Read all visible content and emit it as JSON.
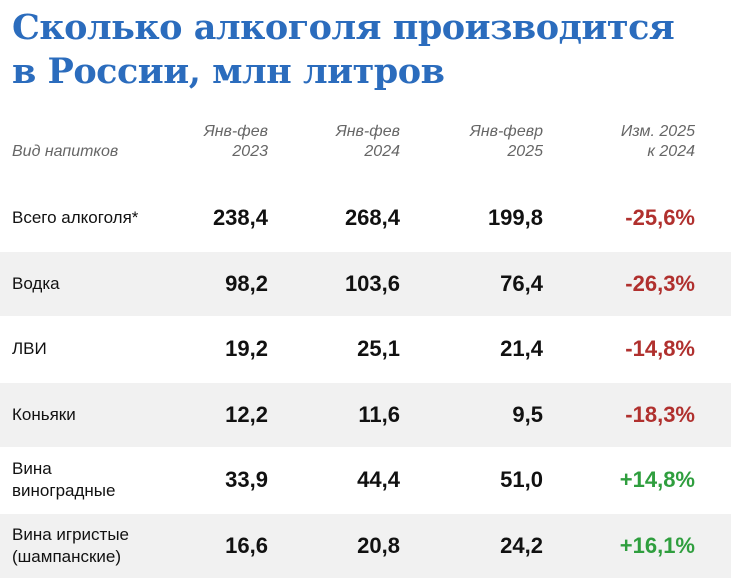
{
  "header": {
    "title": [
      "Сколько алкоголя производится",
      "в России, млн литров"
    ]
  },
  "table": {
    "columns": [
      [
        "Вид напитков"
      ],
      [
        "Янв-фев",
        "2023"
      ],
      [
        "Янв-фев",
        "2024"
      ],
      [
        "Янв-февр",
        "2025"
      ],
      [
        "Изм. 2025",
        "к 2024"
      ]
    ],
    "rows": [
      [
        [
          "Всего алкоголя*"
        ],
        "238,4",
        "268,4",
        "199,8",
        "-25,6%"
      ],
      [
        [
          "Водка"
        ],
        "98,2",
        "103,6",
        "76,4",
        "-26,3%"
      ],
      [
        [
          "ЛВИ"
        ],
        "19,2",
        "25,1",
        "21,4",
        "-14,8%"
      ],
      [
        [
          "Коньяки"
        ],
        "12,2",
        "11,6",
        "9,5",
        "-18,3%"
      ],
      [
        [
          "Вина",
          "виноградные"
        ],
        "33,9",
        "44,4",
        "51,0",
        "+14,8%"
      ],
      [
        [
          "Вина игристые",
          "(шампанские)"
        ],
        "16,6",
        "20,8",
        "24,2",
        "+16,1%"
      ]
    ],
    "change_colors": {
      "negative": "#b0302e",
      "positive": "#2f9e3e"
    }
  }
}
